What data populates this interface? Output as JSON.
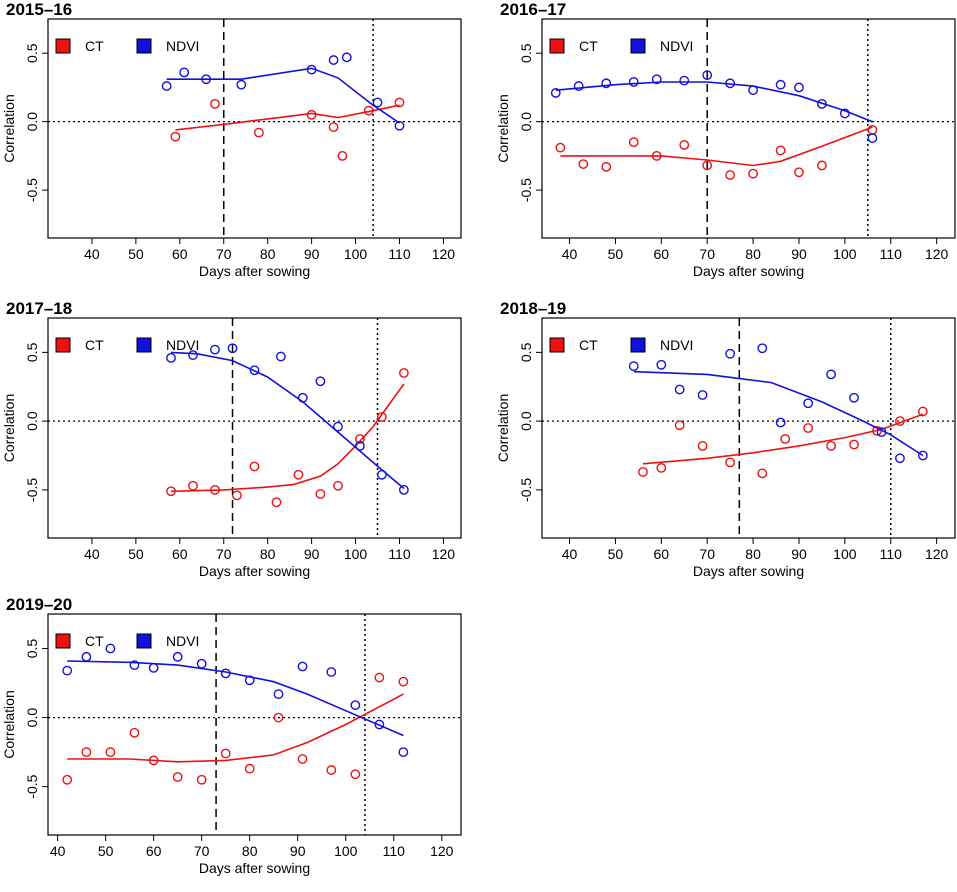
{
  "colors": {
    "ct": "#ee1111",
    "ndvi": "#1111dd"
  },
  "chart_data": [
    {
      "type": "scatter",
      "title": "2015–16",
      "xlabel": "Days after sowing",
      "ylabel": "Correlation",
      "xlim": [
        30,
        124
      ],
      "ylim": [
        -0.85,
        0.75
      ],
      "xticks": [
        "40",
        "50",
        "60",
        "70",
        "80",
        "90",
        "100",
        "110",
        "120"
      ],
      "yticks": [
        "-0.5",
        "0.0",
        "0.5"
      ],
      "legend": [
        "CT",
        "NDVI"
      ],
      "vlines": {
        "dashed": 70,
        "dotted": 104
      },
      "series": [
        {
          "name": "CT",
          "x": [
            59,
            68,
            78,
            90,
            95,
            97,
            103,
            110
          ],
          "y": [
            -0.11,
            0.13,
            -0.08,
            0.05,
            -0.04,
            -0.25,
            0.08,
            0.14
          ],
          "fit_x": [
            59,
            70,
            80,
            90,
            96,
            104,
            110
          ],
          "fit_y": [
            -0.06,
            -0.02,
            0.02,
            0.06,
            0.03,
            0.08,
            0.12
          ]
        },
        {
          "name": "NDVI",
          "x": [
            57,
            61,
            66,
            74,
            90,
            95,
            98,
            105,
            110
          ],
          "y": [
            0.26,
            0.36,
            0.31,
            0.27,
            0.38,
            0.45,
            0.47,
            0.14,
            -0.03
          ],
          "fit_x": [
            57,
            74,
            90,
            96,
            104,
            110
          ],
          "fit_y": [
            0.31,
            0.31,
            0.39,
            0.32,
            0.12,
            -0.01
          ]
        }
      ]
    },
    {
      "type": "scatter",
      "title": "2016–17",
      "xlabel": "Days after sowing",
      "ylabel": "Correlation",
      "xlim": [
        34,
        124
      ],
      "ylim": [
        -0.85,
        0.75
      ],
      "xticks": [
        "40",
        "50",
        "60",
        "70",
        "80",
        "90",
        "100",
        "110",
        "120"
      ],
      "yticks": [
        "-0.5",
        "0.0",
        "0.5"
      ],
      "legend": [
        "CT",
        "NDVI"
      ],
      "vlines": {
        "dashed": 70,
        "dotted": 105
      },
      "series": [
        {
          "name": "CT",
          "x": [
            38,
            43,
            48,
            54,
            59,
            65,
            70,
            75,
            80,
            86,
            90,
            95,
            106
          ],
          "y": [
            -0.19,
            -0.31,
            -0.33,
            -0.15,
            -0.25,
            -0.17,
            -0.32,
            -0.39,
            -0.38,
            -0.21,
            -0.37,
            -0.32,
            -0.06
          ],
          "fit_x": [
            38,
            50,
            60,
            70,
            80,
            86,
            95,
            106
          ],
          "fit_y": [
            -0.25,
            -0.25,
            -0.25,
            -0.28,
            -0.32,
            -0.29,
            -0.18,
            -0.04
          ]
        },
        {
          "name": "NDVI",
          "x": [
            37,
            42,
            48,
            54,
            59,
            65,
            70,
            75,
            80,
            86,
            90,
            95,
            100,
            106
          ],
          "y": [
            0.21,
            0.26,
            0.28,
            0.29,
            0.31,
            0.3,
            0.34,
            0.28,
            0.23,
            0.27,
            0.25,
            0.13,
            0.06,
            -0.12
          ],
          "fit_x": [
            37,
            50,
            60,
            70,
            80,
            90,
            100,
            106
          ],
          "fit_y": [
            0.23,
            0.27,
            0.29,
            0.29,
            0.26,
            0.19,
            0.08,
            0.0
          ]
        }
      ]
    },
    {
      "type": "scatter",
      "title": "2017–18",
      "xlabel": "Days after sowing",
      "ylabel": "Correlation",
      "xlim": [
        30,
        124
      ],
      "ylim": [
        -0.85,
        0.75
      ],
      "xticks": [
        "40",
        "50",
        "60",
        "70",
        "80",
        "90",
        "100",
        "110",
        "120"
      ],
      "yticks": [
        "-0.5",
        "0.0",
        "0.5"
      ],
      "legend": [
        "CT",
        "NDVI"
      ],
      "vlines": {
        "dashed": 72,
        "dotted": 105
      },
      "series": [
        {
          "name": "CT",
          "x": [
            58,
            63,
            68,
            73,
            77,
            82,
            87,
            92,
            96,
            101,
            106,
            111
          ],
          "y": [
            -0.51,
            -0.47,
            -0.5,
            -0.54,
            -0.33,
            -0.59,
            -0.39,
            -0.53,
            -0.47,
            -0.13,
            0.03,
            0.35
          ],
          "fit_x": [
            58,
            70,
            80,
            86,
            92,
            96,
            100,
            104,
            111
          ],
          "fit_y": [
            -0.51,
            -0.5,
            -0.48,
            -0.46,
            -0.4,
            -0.31,
            -0.18,
            -0.04,
            0.27
          ]
        },
        {
          "name": "NDVI",
          "x": [
            58,
            63,
            68,
            72,
            77,
            83,
            88,
            92,
            96,
            101,
            106,
            111
          ],
          "y": [
            0.46,
            0.48,
            0.52,
            0.53,
            0.37,
            0.47,
            0.17,
            0.29,
            -0.04,
            -0.18,
            -0.39,
            -0.5
          ],
          "fit_x": [
            58,
            64,
            72,
            80,
            88,
            96,
            104,
            111
          ],
          "fit_y": [
            0.5,
            0.49,
            0.44,
            0.32,
            0.14,
            -0.08,
            -0.3,
            -0.49
          ]
        }
      ]
    },
    {
      "type": "scatter",
      "title": "2018–19",
      "xlabel": "Days after sowing",
      "ylabel": "Correlation",
      "xlim": [
        34,
        124
      ],
      "ylim": [
        -0.85,
        0.75
      ],
      "xticks": [
        "40",
        "50",
        "60",
        "70",
        "80",
        "90",
        "100",
        "110",
        "120"
      ],
      "yticks": [
        "-0.5",
        "0.0",
        "0.5"
      ],
      "legend": [
        "CT",
        "NDVI"
      ],
      "vlines": {
        "dashed": 77,
        "dotted": 110
      },
      "series": [
        {
          "name": "CT",
          "x": [
            56,
            60,
            64,
            69,
            75,
            82,
            87,
            92,
            97,
            102,
            107,
            112,
            117
          ],
          "y": [
            -0.37,
            -0.34,
            -0.03,
            -0.18,
            -0.3,
            -0.38,
            -0.13,
            -0.05,
            -0.18,
            -0.17,
            -0.07,
            0.0,
            0.07
          ],
          "fit_x": [
            56,
            70,
            80,
            90,
            100,
            108,
            117
          ],
          "fit_y": [
            -0.31,
            -0.27,
            -0.23,
            -0.18,
            -0.12,
            -0.06,
            0.05
          ]
        },
        {
          "name": "NDVI",
          "x": [
            54,
            60,
            64,
            69,
            75,
            82,
            86,
            92,
            97,
            102,
            108,
            112,
            117
          ],
          "y": [
            0.4,
            0.41,
            0.23,
            0.19,
            0.49,
            0.53,
            -0.01,
            0.13,
            0.34,
            0.17,
            -0.08,
            -0.27,
            -0.25
          ],
          "fit_x": [
            54,
            70,
            84,
            95,
            104,
            110,
            117
          ],
          "fit_y": [
            0.36,
            0.34,
            0.28,
            0.14,
            0.0,
            -0.1,
            -0.25
          ]
        }
      ]
    },
    {
      "type": "scatter",
      "title": "2019–20",
      "xlabel": "Days after sowing",
      "ylabel": "Correlation",
      "xlim": [
        38,
        124
      ],
      "ylim": [
        -0.85,
        0.75
      ],
      "xticks": [
        "40",
        "50",
        "60",
        "70",
        "80",
        "90",
        "100",
        "110",
        "120"
      ],
      "yticks": [
        "-0.5",
        "0.0",
        "0.5"
      ],
      "legend": [
        "CT",
        "NDVI"
      ],
      "vlines": {
        "dashed": 73,
        "dotted": 104
      },
      "series": [
        {
          "name": "CT",
          "x": [
            42,
            46,
            51,
            56,
            60,
            65,
            70,
            75,
            80,
            86,
            91,
            97,
            102,
            107,
            112
          ],
          "y": [
            -0.45,
            -0.25,
            -0.25,
            -0.11,
            -0.31,
            -0.43,
            -0.45,
            -0.26,
            -0.37,
            0.0,
            -0.3,
            -0.38,
            -0.41,
            0.29,
            0.26
          ],
          "fit_x": [
            42,
            55,
            65,
            75,
            85,
            92,
            100,
            106,
            112
          ],
          "fit_y": [
            -0.3,
            -0.3,
            -0.32,
            -0.31,
            -0.27,
            -0.18,
            -0.05,
            0.06,
            0.17
          ]
        },
        {
          "name": "NDVI",
          "x": [
            42,
            46,
            51,
            56,
            60,
            65,
            70,
            75,
            80,
            86,
            91,
            97,
            102,
            107,
            112
          ],
          "y": [
            0.34,
            0.44,
            0.5,
            0.38,
            0.36,
            0.44,
            0.39,
            0.32,
            0.27,
            0.17,
            0.37,
            0.33,
            0.09,
            -0.05,
            -0.25
          ],
          "fit_x": [
            42,
            55,
            65,
            75,
            85,
            92,
            100,
            106,
            112
          ],
          "fit_y": [
            0.41,
            0.4,
            0.38,
            0.33,
            0.26,
            0.17,
            0.05,
            -0.04,
            -0.13
          ]
        }
      ]
    }
  ]
}
